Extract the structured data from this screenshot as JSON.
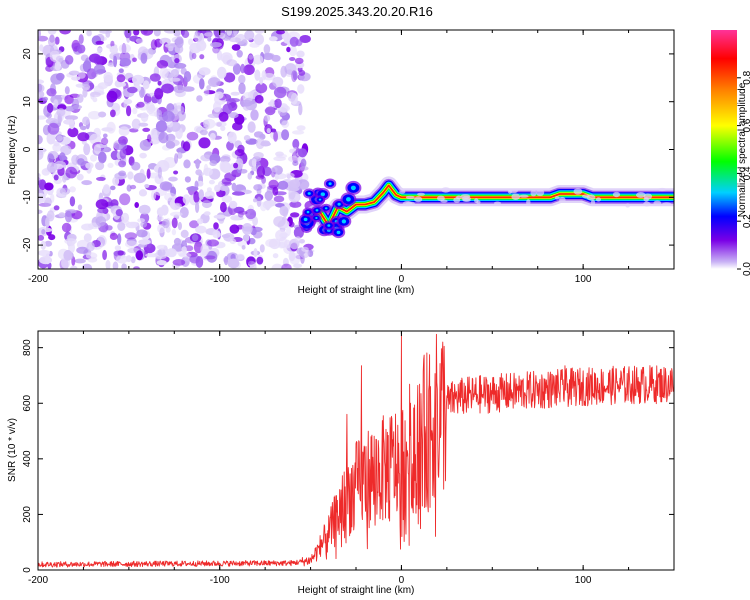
{
  "title": "S199.2025.343.20.20.R16",
  "chart_data": [
    {
      "type": "heatmap",
      "xlabel": "Height of straight line (km)",
      "ylabel": "Frequency (Hz)",
      "xlim": [
        -200,
        150
      ],
      "ylim": [
        -25,
        25
      ],
      "xticks": [
        -200,
        -100,
        0,
        100
      ],
      "yticks": [
        -20,
        -10,
        0,
        10,
        20
      ],
      "noise_region_x": [
        -200,
        -53
      ],
      "ridge": [
        {
          "x": -50,
          "y": -14
        },
        {
          "x": -45,
          "y": -13
        },
        {
          "x": -40,
          "y": -16
        },
        {
          "x": -35,
          "y": -12
        },
        {
          "x": -30,
          "y": -13
        },
        {
          "x": -25,
          "y": -11.5
        },
        {
          "x": -20,
          "y": -11.5
        },
        {
          "x": -15,
          "y": -11
        },
        {
          "x": -10,
          "y": -9
        },
        {
          "x": -7,
          "y": -7.5
        },
        {
          "x": -3,
          "y": -9.5
        },
        {
          "x": 0,
          "y": -10
        },
        {
          "x": 10,
          "y": -10
        },
        {
          "x": 40,
          "y": -10
        },
        {
          "x": 82,
          "y": -10
        },
        {
          "x": 87,
          "y": -9.3
        },
        {
          "x": 100,
          "y": -9.3
        },
        {
          "x": 105,
          "y": -10
        },
        {
          "x": 150,
          "y": -10
        }
      ],
      "colorbar": {
        "label": "Normalized spectral amplitude",
        "range": [
          0,
          1
        ],
        "ticks": [
          0.0,
          0.2,
          0.4,
          0.6,
          0.8
        ],
        "tick_labels": [
          "0.0",
          "0.2",
          "0.4",
          "0.6",
          "0.8"
        ],
        "colormap": [
          "#ffffff",
          "#c9b3f5",
          "#7a00e6",
          "#0000ff",
          "#00d0ff",
          "#00ff00",
          "#ffff00",
          "#ff8000",
          "#ff0000",
          "#ff3399"
        ]
      }
    },
    {
      "type": "line",
      "xlabel": "Height of straight line (km)",
      "ylabel": "SNR (10 * v/v)",
      "xlim": [
        -200,
        150
      ],
      "ylim": [
        0,
        860
      ],
      "xticks": [
        -200,
        -100,
        0,
        100
      ],
      "yticks": [
        0,
        200,
        400,
        600,
        800
      ],
      "series": [
        {
          "color": "#ee2a2a",
          "keypoints": [
            {
              "x": -200,
              "y": 20
            },
            {
              "x": -60,
              "y": 25
            },
            {
              "x": -50,
              "y": 35
            },
            {
              "x": -45,
              "y": 80
            },
            {
              "x": -40,
              "y": 130
            },
            {
              "x": -35,
              "y": 200
            },
            {
              "x": -30,
              "y": 260
            },
            {
              "x": -25,
              "y": 300
            },
            {
              "x": -20,
              "y": 330
            },
            {
              "x": -10,
              "y": 360
            },
            {
              "x": -5,
              "y": 380
            },
            {
              "x": 0,
              "y": 390
            },
            {
              "x": 5,
              "y": 440
            },
            {
              "x": 10,
              "y": 480
            },
            {
              "x": 15,
              "y": 520
            },
            {
              "x": 20,
              "y": 560
            },
            {
              "x": 25,
              "y": 600
            },
            {
              "x": 30,
              "y": 620
            },
            {
              "x": 40,
              "y": 630
            },
            {
              "x": 60,
              "y": 640
            },
            {
              "x": 80,
              "y": 650
            },
            {
              "x": 100,
              "y": 660
            },
            {
              "x": 120,
              "y": 665
            },
            {
              "x": 150,
              "y": 670
            }
          ],
          "spikes": [
            {
              "x": -22,
              "y": 735
            },
            {
              "x": -30,
              "y": 560
            },
            {
              "x": 0,
              "y": 850
            },
            {
              "x": -0.5,
              "y": 75
            },
            {
              "x": 5,
              "y": 600
            },
            {
              "x": 90,
              "y": 735
            }
          ]
        }
      ]
    }
  ]
}
